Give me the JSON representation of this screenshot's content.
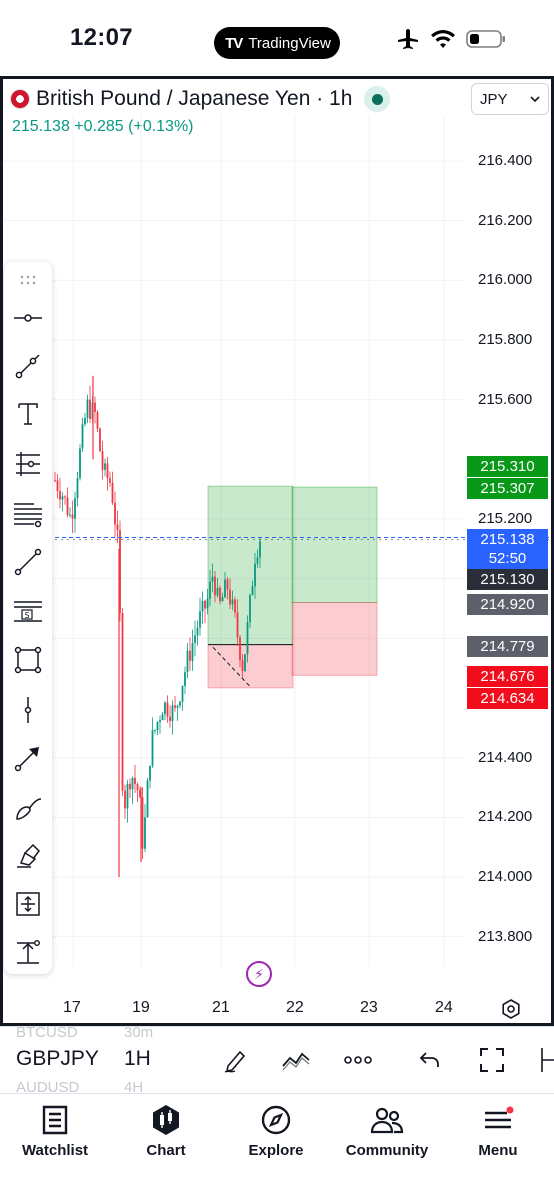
{
  "status_bar": {
    "time": "12:07",
    "app_pill": "TradingView",
    "icons": [
      "airplane-icon",
      "wifi-icon",
      "battery-icon"
    ]
  },
  "header": {
    "title": "British Pound / Japanese Yen · 1h",
    "currency": "JPY",
    "price": "215.138",
    "change": "+0.285",
    "change_pct": "(+0.13%)"
  },
  "price_axis": {
    "labels": [
      "216.400",
      "216.200",
      "216.000",
      "215.800",
      "215.600",
      "215.200",
      "214.400",
      "214.200",
      "214.000",
      "213.800"
    ]
  },
  "price_tags": {
    "tp1": "215.310",
    "tp2": "215.307",
    "current": "215.138",
    "countdown": "52:50",
    "level_a": "215.130",
    "level_b": "214.920",
    "entry": "214.779",
    "sl1": "214.676",
    "sl2": "214.634"
  },
  "time_axis": {
    "labels": [
      "17",
      "19",
      "21",
      "22",
      "23",
      "24"
    ]
  },
  "chart_data": {
    "type": "candlestick",
    "ylim": [
      213.7,
      216.5
    ],
    "x_ticks": [
      "17",
      "19",
      "21",
      "22",
      "23",
      "24"
    ],
    "current_price": 215.138,
    "position_zones": [
      {
        "kind": "profit",
        "top": 215.31,
        "bottom": 214.779
      },
      {
        "kind": "loss",
        "top": 214.779,
        "bottom": 214.634
      },
      {
        "kind": "profit",
        "top": 215.307,
        "bottom": 214.92
      },
      {
        "kind": "loss",
        "top": 214.92,
        "bottom": 214.676
      }
    ]
  },
  "toolbar": {
    "tools": [
      "grip-icon",
      "horizontal-ray-icon",
      "trend-line-icon",
      "text-tool-icon",
      "pitchfork-icon",
      "parallel-channel-icon",
      "line-icon",
      "fib-retracement-icon",
      "rectangle-icon",
      "vertical-line-icon",
      "arrow-icon",
      "brush-icon",
      "highlighter-icon",
      "measure-icon",
      "long-position-icon"
    ]
  },
  "symbol_strip": {
    "ghost_above_symbol": "BTCUSD",
    "ghost_above_interval": "30m",
    "symbol": "GBPJPY",
    "interval": "1H",
    "ghost_below_symbol": "AUDUSD",
    "ghost_below_interval": "4H"
  },
  "bottom_nav": {
    "items": [
      {
        "label": "Watchlist",
        "icon": "watchlist-icon"
      },
      {
        "label": "Chart",
        "icon": "chart-icon"
      },
      {
        "label": "Explore",
        "icon": "compass-icon"
      },
      {
        "label": "Community",
        "icon": "community-icon"
      },
      {
        "label": "Menu",
        "icon": "menu-icon"
      }
    ]
  },
  "colors": {
    "up": "#089981",
    "down": "#f23645",
    "profit_zone": "rgba(8,153,24,0.22)",
    "loss_zone": "rgba(242,54,69,0.25)",
    "current_price_tag": "#2962ff"
  }
}
